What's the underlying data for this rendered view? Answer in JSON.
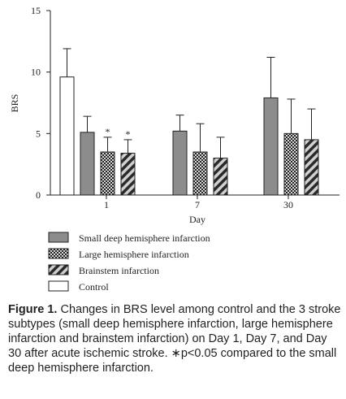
{
  "chart_data": {
    "type": "bar",
    "xlabel": "Day",
    "ylabel": "BRS",
    "ylim": [
      0,
      15
    ],
    "yticks": [
      0,
      5,
      10,
      15
    ],
    "categories": [
      "1",
      "7",
      "30"
    ],
    "series": [
      {
        "name": "Control",
        "values": [
          9.6,
          null,
          null
        ],
        "errors": [
          2.3,
          null,
          null
        ],
        "pattern": "white"
      },
      {
        "name": "Small deep hemisphere infarction",
        "values": [
          5.1,
          5.2,
          7.9
        ],
        "errors": [
          1.3,
          1.3,
          3.3
        ],
        "pattern": "gray"
      },
      {
        "name": "Large hemisphere infarction",
        "values": [
          3.5,
          3.5,
          5.0
        ],
        "errors": [
          1.2,
          2.3,
          2.8
        ],
        "pattern": "checker"
      },
      {
        "name": "Brainstem infarction",
        "values": [
          3.4,
          3.0,
          4.5
        ],
        "errors": [
          1.1,
          1.7,
          2.5
        ],
        "pattern": "stripe"
      }
    ],
    "annotations": [
      {
        "series": 2,
        "category": 0,
        "text": "*"
      },
      {
        "series": 3,
        "category": 0,
        "text": "*"
      }
    ],
    "legend_order": [
      1,
      2,
      3,
      0
    ],
    "legend_position": "bottom"
  },
  "caption": {
    "label": "Figure 1.",
    "text": " Changes in BRS level among control and the 3 stroke subtypes (small deep hemisphere infarction, large hemisphere infarction and brainstem infarction) on Day 1, Day 7, and Day 30 after acute ischemic stroke. ∗p<0.05 compared to the small deep hemisphere infarction."
  }
}
